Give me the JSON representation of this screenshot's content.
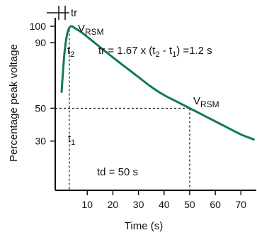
{
  "chart_data": {
    "type": "line",
    "title": "",
    "xlabel": "Time (s)",
    "ylabel": "Percentage peak voltage",
    "x_ticks": [
      10,
      20,
      30,
      40,
      50,
      60,
      70
    ],
    "y_ticks": [
      30,
      50,
      90,
      100
    ],
    "xlim": [
      -2.5,
      76
    ],
    "ylim": [
      0,
      103
    ],
    "grid": false,
    "colors": {
      "curve": "#0f7a5a",
      "axes": "#111111",
      "guides": "#111111"
    },
    "series": [
      {
        "name": "",
        "x": [
          0,
          1,
          2,
          3,
          4,
          5,
          8,
          12,
          16,
          20,
          25,
          30,
          35,
          40,
          45,
          50,
          55,
          60,
          65,
          70,
          75
        ],
        "y": [
          60,
          82,
          94,
          99,
          100,
          99,
          96,
          91,
          86,
          81,
          75,
          69,
          63,
          58,
          54,
          50,
          46,
          42,
          38,
          34,
          31
        ]
      }
    ],
    "annotations": {
      "tr_label": "tr",
      "vrsm_peak_main": "V",
      "vrsm_peak_sub": "RSM",
      "vrsm_curve_main": "V",
      "vrsm_curve_sub": "RSM",
      "t2_main": "t",
      "t2_sub": "2",
      "t1_main": "t",
      "t1_sub": "1",
      "formula_pre": "tr = 1.67 x (t",
      "formula_sub1": "2",
      "formula_mid": " - t",
      "formula_sub2": "1",
      "formula_post": ") =1.2  s",
      "td_label": "td = 50  s"
    },
    "guides": {
      "t1_x": 3,
      "t2_x": 3,
      "td_x": 50,
      "level_50_y": 50
    }
  }
}
